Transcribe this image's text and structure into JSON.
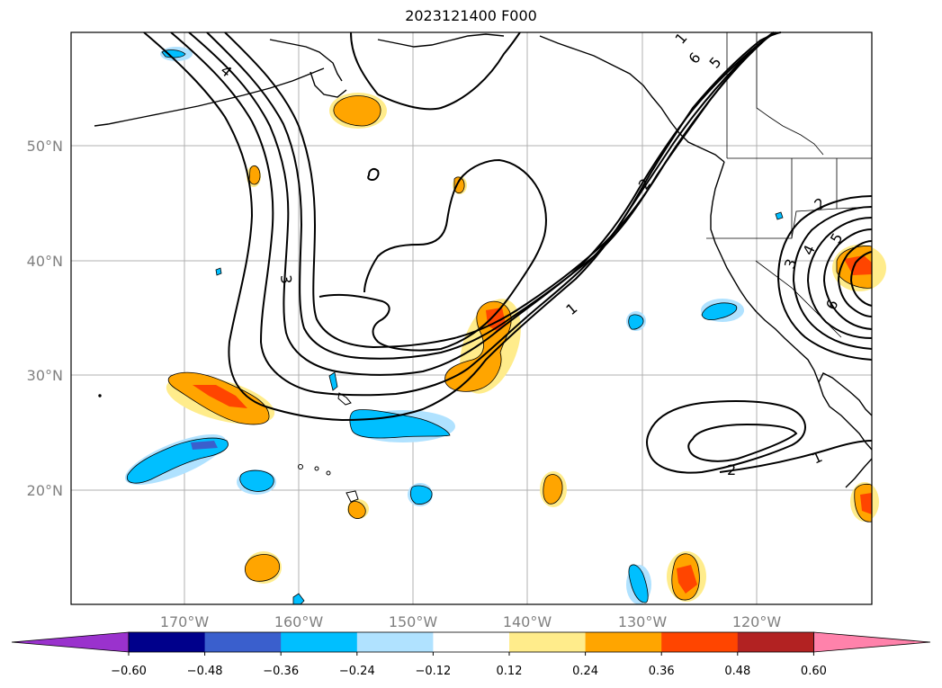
{
  "title": "2023121400 F000",
  "map": {
    "lat_labels": [
      "50°N",
      "40°N",
      "30°N",
      "20°N"
    ],
    "lon_labels": [
      "170°W",
      "160°W",
      "150°W",
      "140°W",
      "130°W",
      "120°W"
    ],
    "contour_labels": [
      "4",
      "3",
      "2",
      "1",
      "6",
      "5",
      "1",
      "2",
      "1",
      "3",
      "4",
      "5",
      "2",
      "6"
    ]
  },
  "colorbar": {
    "ticks": [
      "−0.60",
      "−0.48",
      "−0.36",
      "−0.24",
      "−0.12",
      "0.12",
      "0.24",
      "0.36",
      "0.48",
      "0.60"
    ],
    "colors": [
      "#9a32cd",
      "#00008b",
      "#3a5fcd",
      "#00bfff",
      "#b0e2ff",
      "#ffffff",
      "#ffec8b",
      "#ffa500",
      "#ff4500",
      "#b22222",
      "#ff82ab"
    ]
  }
}
